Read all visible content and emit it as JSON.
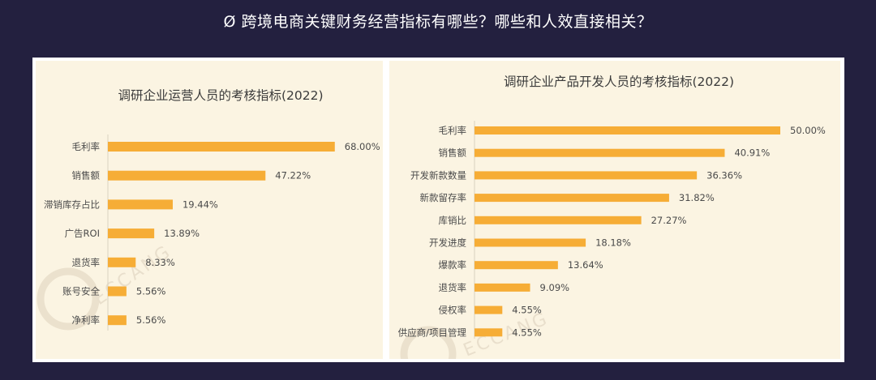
{
  "page": {
    "title": "Ø 跨境电商关键财务经营指标有哪些？哪些和人效直接相关？"
  },
  "watermark": {
    "brand": "ECCANG"
  },
  "colors": {
    "bar": "#f6ad36",
    "background": "#23203f",
    "panel": "#fbf4e2"
  },
  "chart_data": [
    {
      "type": "bar",
      "orientation": "horizontal",
      "title": "调研企业运营人员的考核指标(2022)",
      "categories": [
        "毛利率",
        "销售额",
        "滞销库存占比",
        "广告ROI",
        "退货率",
        "账号安全",
        "净利率"
      ],
      "series": [
        {
          "values": [
            68.0,
            47.22,
            19.44,
            13.89,
            8.33,
            5.56,
            5.56
          ],
          "labels": [
            "68.00%",
            "47.22%",
            "19.44%",
            "13.89%",
            "8.33%",
            "5.56%",
            "5.56%"
          ]
        }
      ],
      "xlim": [
        0,
        70
      ],
      "grid": false
    },
    {
      "type": "bar",
      "orientation": "horizontal",
      "title": "调研企业产品开发人员的考核指标(2022)",
      "categories": [
        "毛利率",
        "销售额",
        "开发新款数量",
        "新款留存率",
        "库销比",
        "开发进度",
        "爆款率",
        "退货率",
        "侵权率",
        "供应商/项目管理"
      ],
      "series": [
        {
          "values": [
            50.0,
            40.91,
            36.36,
            31.82,
            27.27,
            18.18,
            13.64,
            9.09,
            4.55,
            4.55
          ],
          "labels": [
            "50.00%",
            "40.91%",
            "36.36%",
            "31.82%",
            "27.27%",
            "18.18%",
            "13.64%",
            "9.09%",
            "4.55%",
            "4.55%"
          ]
        }
      ],
      "xlim": [
        0,
        50
      ],
      "grid": false
    }
  ]
}
